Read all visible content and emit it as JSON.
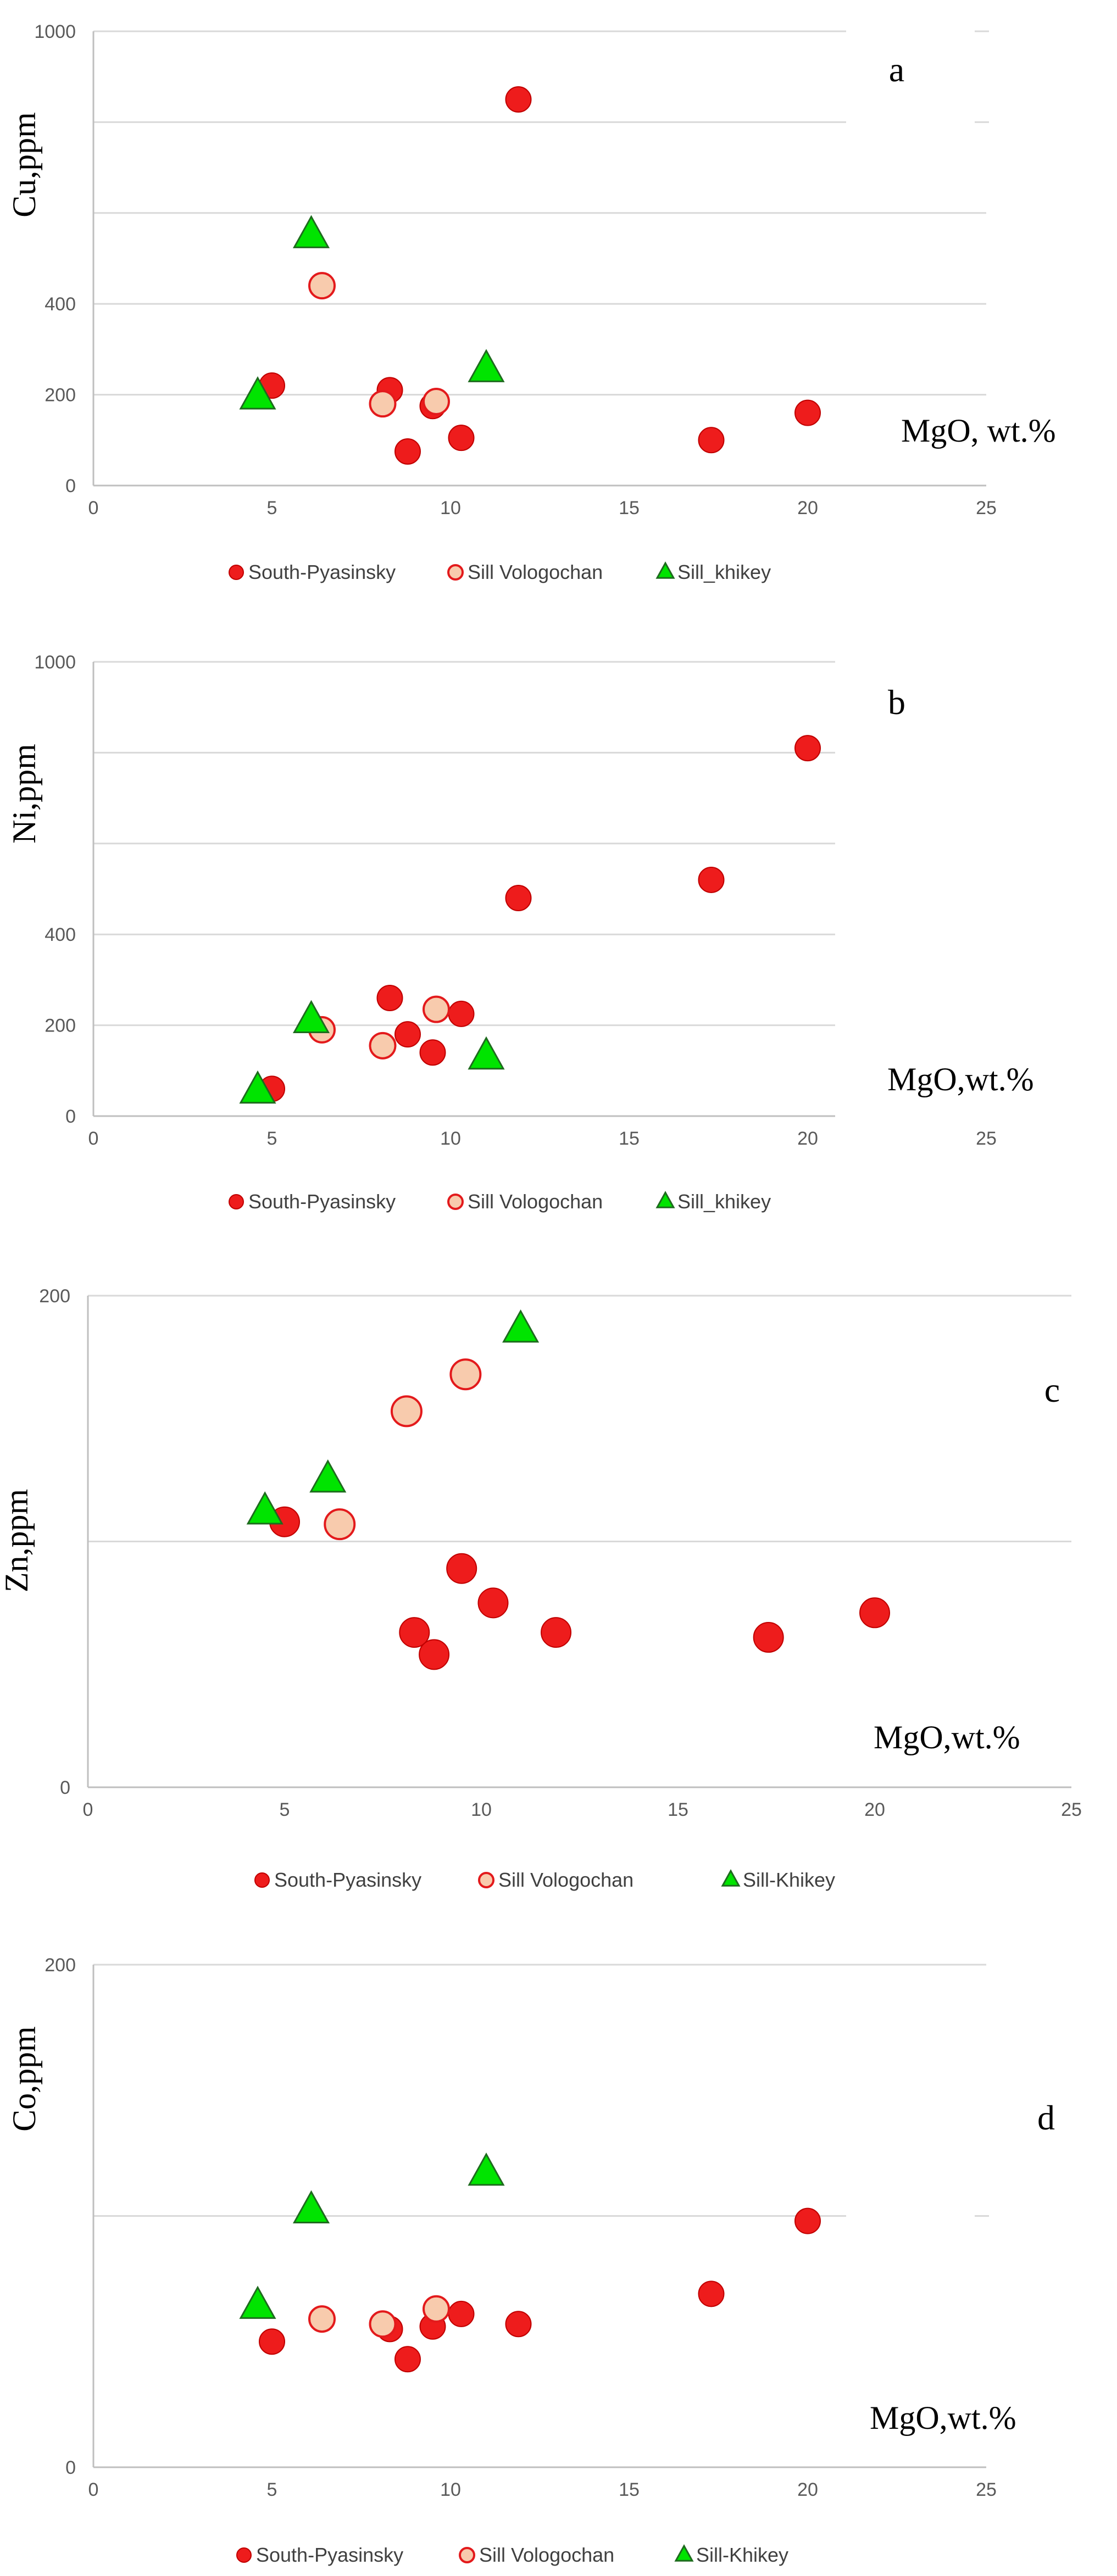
{
  "colors": {
    "south": "#ee1c1c",
    "south_stroke": "#c00000",
    "sill_v_fill": "#f8cbad",
    "sill_v_stroke": "#e31a1c",
    "sill_k_fill": "#00e400",
    "sill_k_stroke": "#1e6b1e",
    "grid": "#d9d9d9",
    "axis": "#bfbfbf"
  },
  "chart_data": [
    {
      "id": "a",
      "type": "scatter",
      "panel_label": "a",
      "ylabel": "Cu,ppm",
      "xlabel": "MgO, wt.%",
      "xlim": [
        0,
        25
      ],
      "ylim": [
        0,
        1000
      ],
      "x_ticks": [
        "0",
        "5",
        "10",
        "15",
        "20",
        "25"
      ],
      "y_ticks": [
        "0",
        "200",
        "400",
        "1000"
      ],
      "y_tick_values": [
        0,
        200,
        400,
        1000
      ],
      "grid_values": [
        200,
        400,
        600,
        800,
        1000
      ],
      "series": [
        {
          "name": "South-Pyasinsky",
          "marker": "circle",
          "points": [
            [
              5.0,
              220
            ],
            [
              8.3,
              210
            ],
            [
              9.5,
              175
            ],
            [
              8.8,
              75
            ],
            [
              10.3,
              105
            ],
            [
              11.9,
              850
            ],
            [
              17.3,
              100
            ],
            [
              20.0,
              160
            ]
          ]
        },
        {
          "name": "Sill Vologochan",
          "marker": "circle-light",
          "points": [
            [
              6.4,
              440
            ],
            [
              8.1,
              180
            ],
            [
              9.6,
              185
            ]
          ]
        },
        {
          "name": "Sill_khikey",
          "marker": "triangle",
          "points": [
            [
              4.6,
              195
            ],
            [
              6.1,
              550
            ],
            [
              11.0,
              255
            ]
          ]
        }
      ]
    },
    {
      "id": "b",
      "type": "scatter",
      "panel_label": "b",
      "ylabel": "Ni,ppm",
      "xlabel": "MgO,wt.%",
      "xlim": [
        0,
        25
      ],
      "ylim": [
        0,
        1000
      ],
      "x_ticks": [
        "0",
        "5",
        "10",
        "15",
        "20",
        "25"
      ],
      "y_ticks": [
        "0",
        "200",
        "400",
        "1000"
      ],
      "y_tick_values": [
        0,
        200,
        400,
        1000
      ],
      "grid_values": [
        200,
        400,
        600,
        800,
        1000
      ],
      "series": [
        {
          "name": "South-Pyasinsky",
          "marker": "circle",
          "points": [
            [
              5.0,
              60
            ],
            [
              8.3,
              260
            ],
            [
              8.8,
              180
            ],
            [
              9.5,
              140
            ],
            [
              10.3,
              225
            ],
            [
              11.9,
              480
            ],
            [
              17.3,
              520
            ],
            [
              20.0,
              810
            ]
          ]
        },
        {
          "name": "Sill Vologochan",
          "marker": "circle-light",
          "points": [
            [
              6.4,
              190
            ],
            [
              8.1,
              155
            ],
            [
              9.6,
              235
            ]
          ]
        },
        {
          "name": "Sill_khikey",
          "marker": "triangle",
          "points": [
            [
              4.6,
              55
            ],
            [
              6.1,
              210
            ],
            [
              11.0,
              130
            ]
          ]
        }
      ]
    },
    {
      "id": "c",
      "type": "scatter",
      "panel_label": "c",
      "ylabel": "Zn,ppm",
      "xlabel": "MgO,wt.%",
      "xlim": [
        0,
        25
      ],
      "ylim": [
        0,
        200
      ],
      "x_ticks": [
        "0",
        "5",
        "10",
        "15",
        "20",
        "25"
      ],
      "y_ticks": [
        "0",
        "200"
      ],
      "y_tick_values": [
        0,
        200
      ],
      "grid_values": [
        100,
        200
      ],
      "series": [
        {
          "name": "South-Pyasinsky",
          "marker": "circle",
          "points": [
            [
              5.0,
              108
            ],
            [
              8.3,
              63
            ],
            [
              8.8,
              54
            ],
            [
              9.5,
              89
            ],
            [
              10.3,
              75
            ],
            [
              11.9,
              63
            ],
            [
              17.3,
              61
            ],
            [
              20.0,
              71
            ]
          ]
        },
        {
          "name": "Sill Vologochan",
          "marker": "circle-light",
          "points": [
            [
              6.4,
              107
            ],
            [
              8.1,
              153
            ],
            [
              9.6,
              168
            ]
          ]
        },
        {
          "name": "Sill-Khikey",
          "marker": "triangle",
          "points": [
            [
              4.5,
              112
            ],
            [
              6.1,
              125
            ],
            [
              11.0,
              186
            ]
          ]
        }
      ]
    },
    {
      "id": "d",
      "type": "scatter",
      "panel_label": "d",
      "ylabel": "Co,ppm",
      "xlabel": "MgO,wt.%",
      "xlim": [
        0,
        25
      ],
      "ylim": [
        0,
        200
      ],
      "x_ticks": [
        "0",
        "5",
        "10",
        "15",
        "20",
        "25"
      ],
      "y_ticks": [
        "0",
        "200"
      ],
      "y_tick_values": [
        0,
        200
      ],
      "grid_values": [
        100,
        200
      ],
      "series": [
        {
          "name": "South-Pyasinsky",
          "marker": "circle",
          "points": [
            [
              5.0,
              50
            ],
            [
              8.3,
              55
            ],
            [
              8.8,
              43
            ],
            [
              9.5,
              56
            ],
            [
              10.3,
              61
            ],
            [
              11.9,
              57
            ],
            [
              17.3,
              69
            ],
            [
              20.0,
              98
            ]
          ]
        },
        {
          "name": "Sill Vologochan",
          "marker": "circle-light",
          "points": [
            [
              6.4,
              59
            ],
            [
              8.1,
              57
            ],
            [
              9.6,
              63
            ]
          ]
        },
        {
          "name": "Sill-Khikey",
          "marker": "triangle",
          "points": [
            [
              4.6,
              64
            ],
            [
              6.1,
              102
            ],
            [
              11.0,
              117
            ]
          ]
        }
      ]
    }
  ]
}
